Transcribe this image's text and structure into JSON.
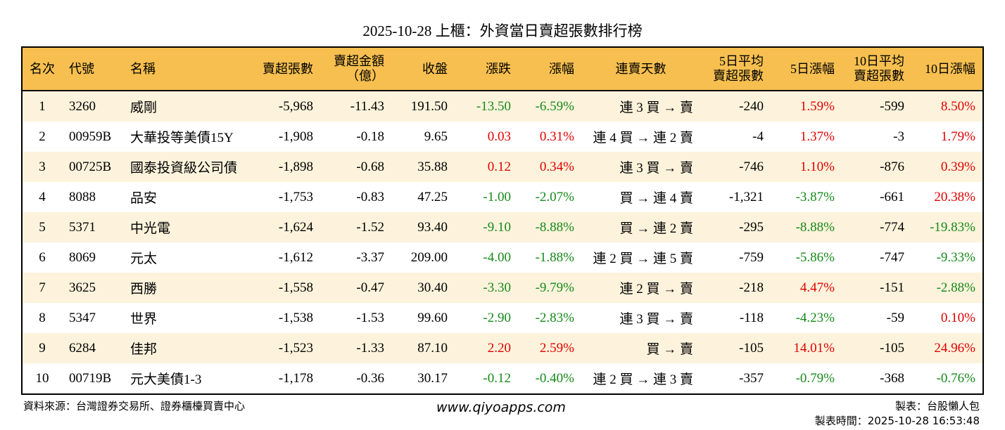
{
  "title": "2025-10-28 上櫃：外資當日賣超張數排行榜",
  "headers": [
    "名次",
    "代號",
    "名稱",
    "賣超張數",
    "賣超金額\n（億）",
    "收盤",
    "漲跌",
    "漲幅",
    "連賣天數",
    "5日平均\n賣超張數",
    "5日漲幅",
    "10日平均\n賣超張數",
    "10日漲幅"
  ],
  "colors": {
    "header": "#f6bf4f",
    "row_alt": "#fdf3dc",
    "up": "#e00000",
    "down": "#16891a"
  },
  "rows": [
    [
      "1",
      "3260",
      "威剛",
      "-5,968",
      "-11.43",
      "191.50",
      "-13.50",
      "-6.59%",
      "連 3 買 → 賣",
      "-240",
      "1.59%",
      "-599",
      "8.50%"
    ],
    [
      "2",
      "00959B",
      "大華投等美債15Y",
      "-1,908",
      "-0.18",
      "9.65",
      "0.03",
      "0.31%",
      "連 4 買 → 連 2 賣",
      "-4",
      "1.37%",
      "-3",
      "1.79%"
    ],
    [
      "3",
      "00725B",
      "國泰投資級公司債",
      "-1,898",
      "-0.68",
      "35.88",
      "0.12",
      "0.34%",
      "連 3 買 → 賣",
      "-746",
      "1.10%",
      "-876",
      "0.39%"
    ],
    [
      "4",
      "8088",
      "品安",
      "-1,753",
      "-0.83",
      "47.25",
      "-1.00",
      "-2.07%",
      "買 → 連 4 賣",
      "-1,321",
      "-3.87%",
      "-661",
      "20.38%"
    ],
    [
      "5",
      "5371",
      "中光電",
      "-1,624",
      "-1.52",
      "93.40",
      "-9.10",
      "-8.88%",
      "買 → 連 2 賣",
      "-295",
      "-8.88%",
      "-774",
      "-19.83%"
    ],
    [
      "6",
      "8069",
      "元太",
      "-1,612",
      "-3.37",
      "209.00",
      "-4.00",
      "-1.88%",
      "連 2 買 → 連 5 賣",
      "-759",
      "-5.86%",
      "-747",
      "-9.33%"
    ],
    [
      "7",
      "3625",
      "西勝",
      "-1,558",
      "-0.47",
      "30.40",
      "-3.30",
      "-9.79%",
      "連 2 買 → 賣",
      "-218",
      "4.47%",
      "-151",
      "-2.88%"
    ],
    [
      "8",
      "5347",
      "世界",
      "-1,538",
      "-1.53",
      "99.60",
      "-2.90",
      "-2.83%",
      "連 3 買 → 賣",
      "-118",
      "-4.23%",
      "-59",
      "0.10%"
    ],
    [
      "9",
      "6284",
      "佳邦",
      "-1,523",
      "-1.33",
      "87.10",
      "2.20",
      "2.59%",
      "買 → 賣",
      "-105",
      "14.01%",
      "-105",
      "24.96%"
    ],
    [
      "10",
      "00719B",
      "元大美債1-3",
      "-1,178",
      "-0.36",
      "30.17",
      "-0.12",
      "-0.40%",
      "連 2 買 → 連 3 賣",
      "-357",
      "-0.79%",
      "-368",
      "-0.76%"
    ]
  ],
  "footer": {
    "source": "資料來源：台灣證券交易所、證券櫃檯買賣中心",
    "url": "www.qiyoapps.com",
    "maker": "製表：台股懶人包",
    "time": "製表時間：2025-10-28 16:53:48"
  }
}
